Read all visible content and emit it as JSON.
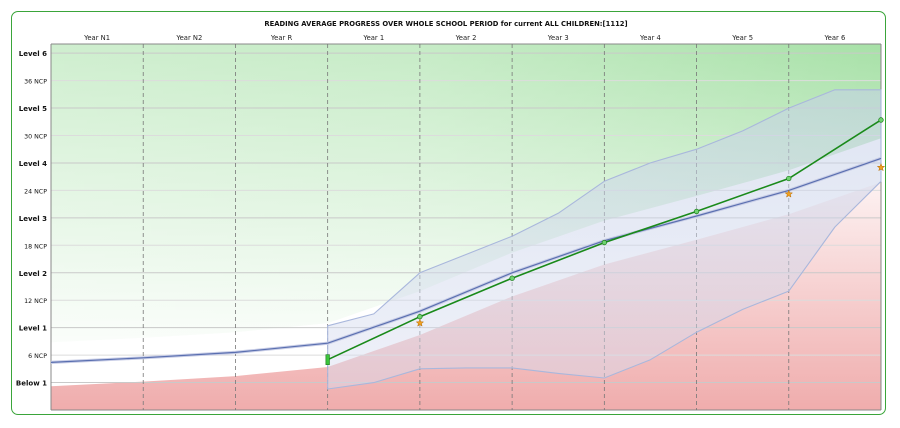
{
  "chart_data": {
    "type": "line",
    "title": "READING AVERAGE PROGRESS OVER WHOLE SCHOOL PERIOD for current  ALL CHILDREN:[1112]",
    "xlabel": "",
    "ylabel": "",
    "categories": [
      "Year N1",
      "Year N2",
      "Year R",
      "Year 1",
      "Year 2",
      "Year 3",
      "Year 4",
      "Year 5",
      "Year 6"
    ],
    "x_range": [
      0,
      9
    ],
    "ylim": [
      0,
      40
    ],
    "y_ticks": [
      {
        "value": 3,
        "label": "Below 1",
        "major": true
      },
      {
        "value": 6,
        "label": "6 NCP",
        "major": false
      },
      {
        "value": 9,
        "label": "Level 1",
        "major": true
      },
      {
        "value": 12,
        "label": "12 NCP",
        "major": false
      },
      {
        "value": 15,
        "label": "Level 2",
        "major": true
      },
      {
        "value": 18,
        "label": "18 NCP",
        "major": false
      },
      {
        "value": 21,
        "label": "Level 3",
        "major": true
      },
      {
        "value": 24,
        "label": "24 NCP",
        "major": false
      },
      {
        "value": 27,
        "label": "Level 4",
        "major": true
      },
      {
        "value": 30,
        "label": "30 NCP",
        "major": false
      },
      {
        "value": 33,
        "label": "Level 5",
        "major": true
      },
      {
        "value": 36,
        "label": "36 NCP",
        "major": false
      },
      {
        "value": 39,
        "label": "Level 6",
        "major": true
      }
    ],
    "grid": true,
    "series": [
      {
        "name": "",
        "color": "#5a6fb0",
        "points": [
          [
            0,
            5.2
          ],
          [
            1,
            5.7
          ],
          [
            2,
            6.3
          ],
          [
            3,
            7.3
          ],
          [
            4,
            10.8
          ],
          [
            5,
            15.0
          ],
          [
            6,
            18.5
          ],
          [
            7,
            21.2
          ],
          [
            8,
            24.0
          ],
          [
            9,
            27.5
          ]
        ]
      },
      {
        "name": "",
        "color": "#1a8a1a",
        "points": [
          [
            3,
            5.5
          ],
          [
            4,
            10.2
          ],
          [
            5,
            14.4
          ],
          [
            6,
            18.3
          ],
          [
            7,
            21.7
          ],
          [
            8,
            25.3
          ],
          [
            9,
            31.7
          ]
        ]
      },
      {
        "name": "",
        "color": "#f0a020",
        "marker": "star",
        "points": [
          [
            4,
            9.5
          ],
          [
            9,
            26.5
          ],
          [
            8,
            23.6
          ]
        ]
      }
    ],
    "band": {
      "x": [
        3,
        3.5,
        4,
        4.5,
        5,
        5.5,
        6,
        6.5,
        7,
        7.5,
        8,
        8.5,
        9
      ],
      "upper": [
        9.2,
        10.5,
        15.0,
        17.0,
        19.0,
        21.5,
        25.0,
        27.0,
        28.5,
        30.5,
        33.0,
        35.0,
        35.0
      ],
      "lower": [
        2.3,
        3.0,
        4.5,
        4.6,
        4.6,
        4.0,
        3.5,
        5.5,
        8.5,
        11.0,
        13.0,
        20.0,
        25.0
      ]
    },
    "colors": {
      "above": "#5fc85f",
      "below": "#e05a5a",
      "frame": "#3aa53a",
      "band": "#a9b7dc"
    }
  }
}
